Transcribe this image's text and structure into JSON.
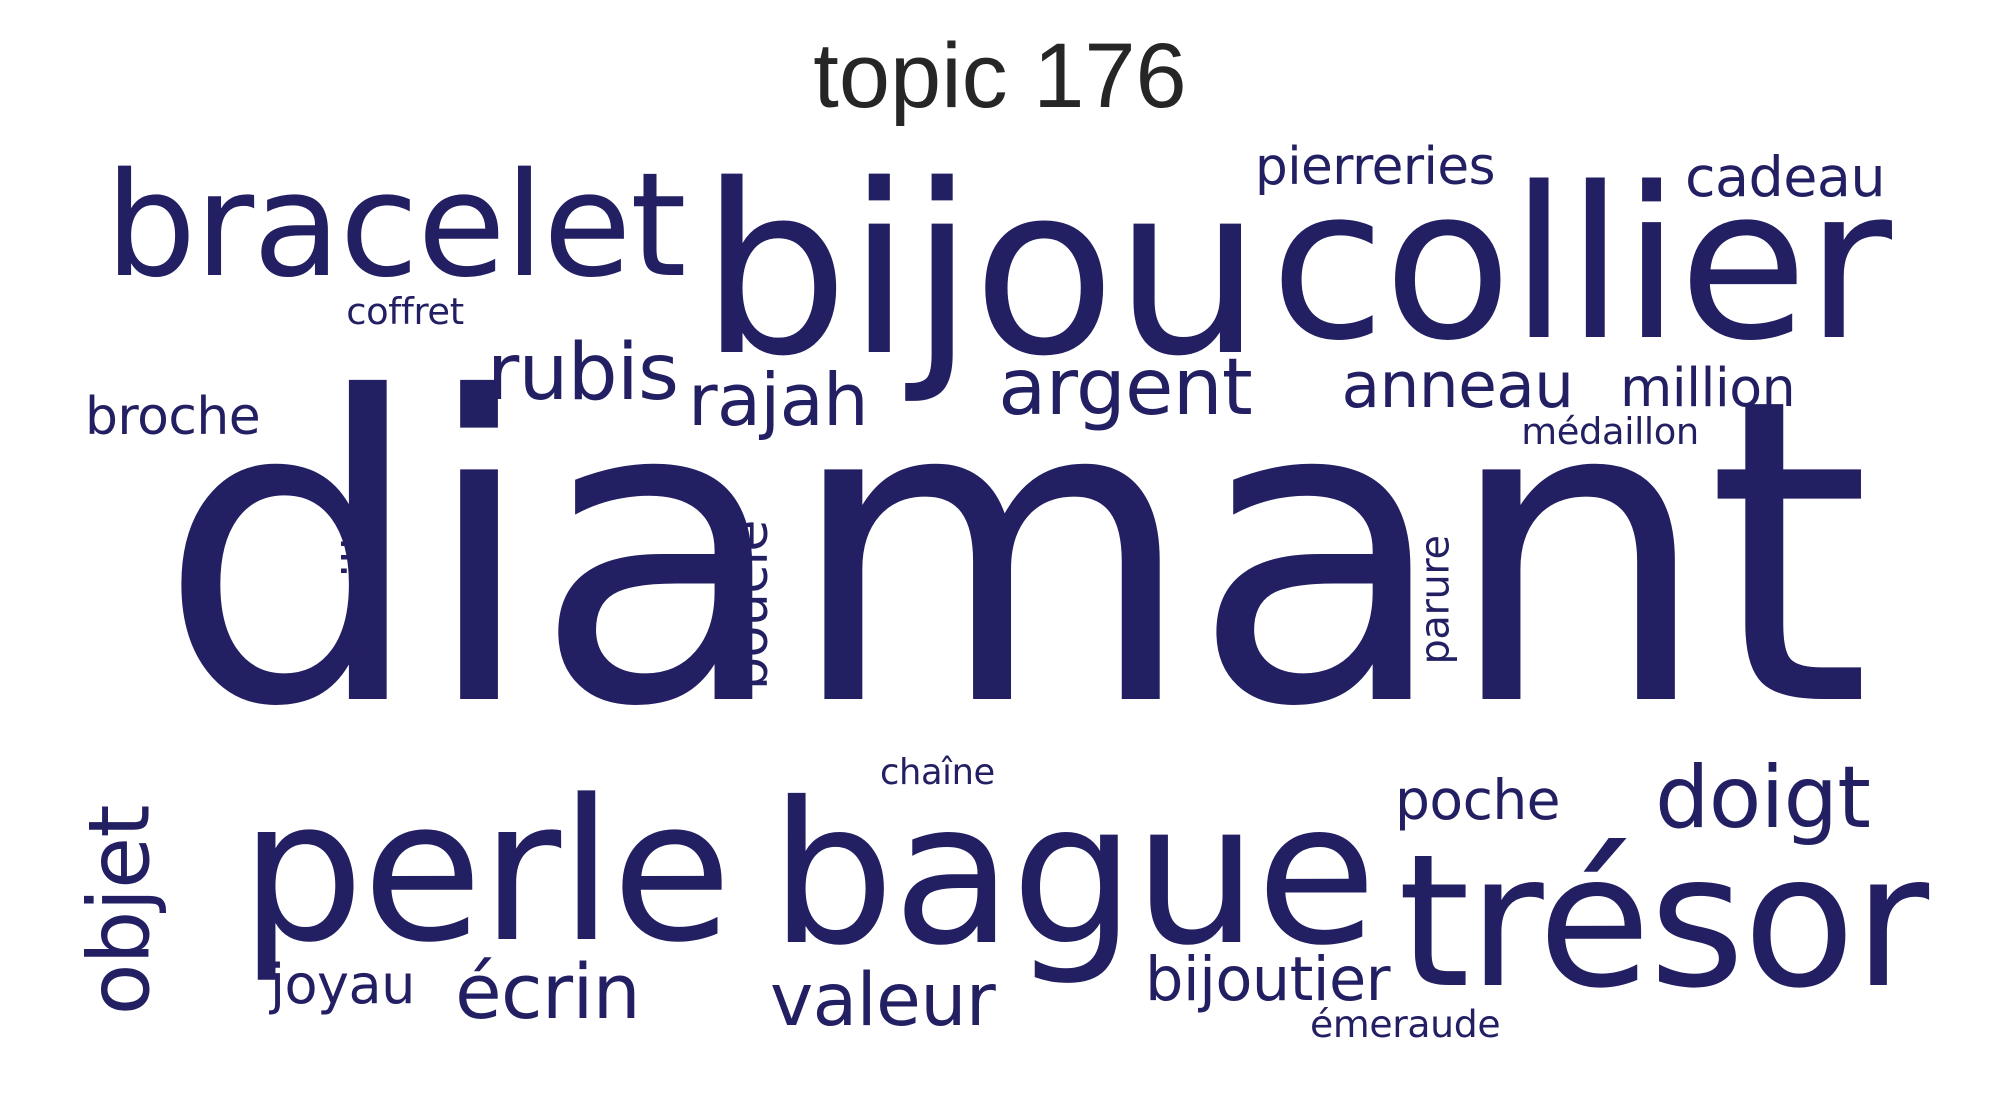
{
  "title": "topic 176",
  "color": "#231f63",
  "words": [
    {
      "text": "diamant"
    },
    {
      "text": "bijou"
    },
    {
      "text": "collier"
    },
    {
      "text": "bracelet"
    },
    {
      "text": "perle"
    },
    {
      "text": "bague"
    },
    {
      "text": "trésor"
    },
    {
      "text": "rubis"
    },
    {
      "text": "rajah"
    },
    {
      "text": "argent"
    },
    {
      "text": "anneau"
    },
    {
      "text": "million"
    },
    {
      "text": "médaillon"
    },
    {
      "text": "pierreries"
    },
    {
      "text": "cadeau"
    },
    {
      "text": "coffret"
    },
    {
      "text": "broche"
    },
    {
      "text": "oreille"
    },
    {
      "text": "boucle"
    },
    {
      "text": "parure"
    },
    {
      "text": "doigt"
    },
    {
      "text": "poche"
    },
    {
      "text": "chaîne"
    },
    {
      "text": "objet"
    },
    {
      "text": "joyau"
    },
    {
      "text": "écrin"
    },
    {
      "text": "valeur"
    },
    {
      "text": "bijoutier"
    },
    {
      "text": "émeraude"
    }
  ]
}
